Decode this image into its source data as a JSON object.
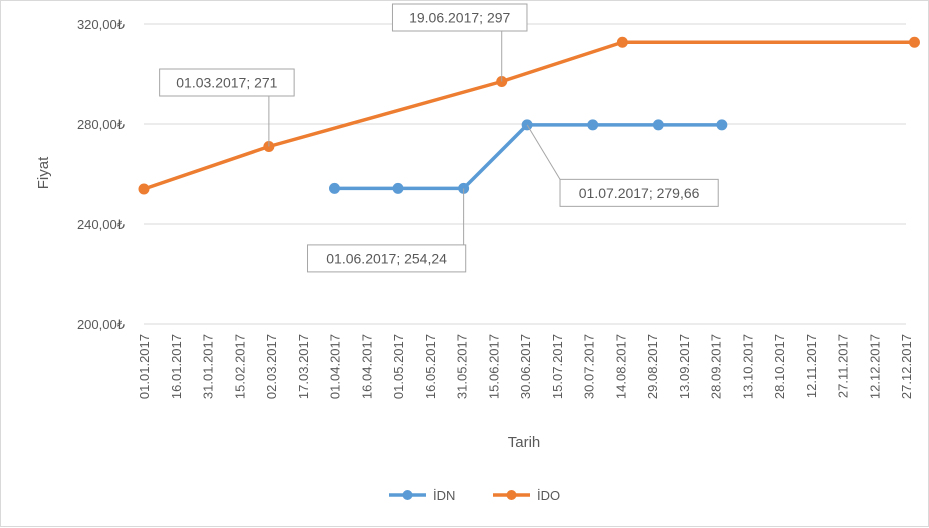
{
  "chart_data": {
    "type": "line",
    "xlabel": "Tarih",
    "ylabel": "Fiyat",
    "ylim": [
      200,
      320
    ],
    "yticks": [
      200,
      240,
      280,
      320
    ],
    "ytick_labels": [
      "200,00₺",
      "240,00₺",
      "280,00₺",
      "320,00₺"
    ],
    "xlim": [
      "2017-01-01",
      "2017-12-27"
    ],
    "xtick_labels": [
      "01.01.2017",
      "16.01.2017",
      "31.01.2017",
      "15.02.2017",
      "02.03.2017",
      "17.03.2017",
      "01.04.2017",
      "16.04.2017",
      "01.05.2017",
      "16.05.2017",
      "31.05.2017",
      "15.06.2017",
      "30.06.2017",
      "15.07.2017",
      "30.07.2017",
      "14.08.2017",
      "29.08.2017",
      "13.09.2017",
      "28.09.2017",
      "13.10.2017",
      "28.10.2017",
      "12.11.2017",
      "27.11.2017",
      "12.12.2017",
      "27.12.2017"
    ],
    "grid": true,
    "legend_position": "bottom",
    "series": [
      {
        "name": "İDN",
        "color": "#5B9BD5",
        "points": [
          {
            "x": "2017-04-01",
            "y": 254.24
          },
          {
            "x": "2017-05-01",
            "y": 254.24
          },
          {
            "x": "2017-06-01",
            "y": 254.24
          },
          {
            "x": "2017-07-01",
            "y": 279.66
          },
          {
            "x": "2017-08-01",
            "y": 279.66
          },
          {
            "x": "2017-09-01",
            "y": 279.66
          },
          {
            "x": "2017-10-01",
            "y": 279.66
          }
        ]
      },
      {
        "name": "İDO",
        "color": "#ED7D31",
        "points": [
          {
            "x": "2017-01-01",
            "y": 254
          },
          {
            "x": "2017-03-01",
            "y": 271
          },
          {
            "x": "2017-06-19",
            "y": 297
          },
          {
            "x": "2017-08-15",
            "y": 312.7
          },
          {
            "x": "2017-12-31",
            "y": 312.7
          }
        ]
      }
    ],
    "annotations": [
      {
        "text": "01.03.2017; 271",
        "series": 1,
        "point": 1,
        "position": "upper-left"
      },
      {
        "text": "19.06.2017; 297",
        "series": 1,
        "point": 2,
        "position": "upper-left"
      },
      {
        "text": "01.06.2017; 254,24",
        "series": 0,
        "point": 2,
        "position": "lower-left"
      },
      {
        "text": "01.07.2017; 279,66",
        "series": 0,
        "point": 3,
        "position": "lower-right"
      }
    ]
  }
}
